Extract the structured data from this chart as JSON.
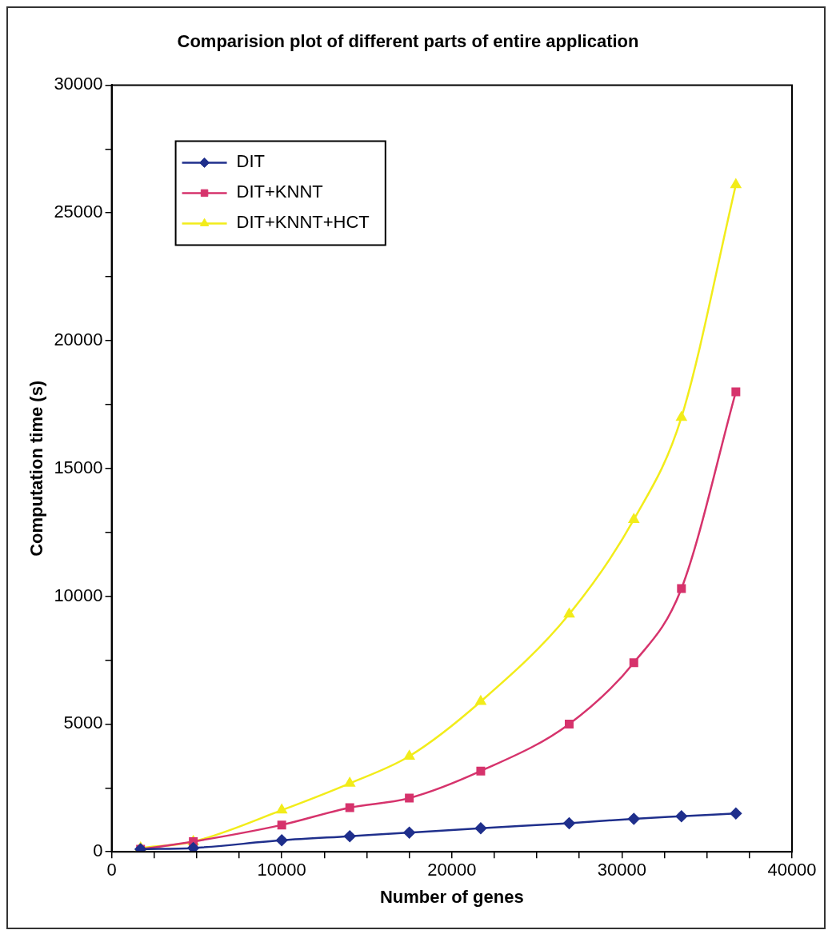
{
  "chart_data": {
    "type": "line",
    "title": "Comparision plot of different parts of entire application",
    "xlabel": "Number of genes",
    "ylabel": "Computation time (s)",
    "x": [
      1700,
      4800,
      10000,
      14000,
      17500,
      21700,
      26900,
      30700,
      33500,
      36700
    ],
    "series": [
      {
        "name": "DIT",
        "color": "#1f2f8c",
        "marker": "diamond",
        "values": [
          100,
          150,
          450,
          610,
          750,
          920,
          1120,
          1290,
          1390,
          1500
        ]
      },
      {
        "name": "DIT+KNNT",
        "color": "#d6336c",
        "marker": "square",
        "values": [
          100,
          400,
          1050,
          1730,
          2100,
          3160,
          5000,
          7400,
          10300,
          18000
        ]
      },
      {
        "name": "DIT+KNNT+HCT",
        "color": "#f2ec1a",
        "marker": "triangle",
        "values": [
          150,
          400,
          1630,
          2680,
          3740,
          5880,
          9300,
          13000,
          17000,
          26100
        ]
      }
    ],
    "xlim": [
      0,
      40000
    ],
    "xticks": [
      0,
      {
        "value": 2500,
        "label": null
      },
      {
        "value": 5000,
        "label": null
      },
      {
        "value": 7500,
        "label": null
      },
      10000,
      {
        "value": 12500,
        "label": null
      },
      {
        "value": 15000,
        "label": null
      },
      {
        "value": 17500,
        "label": null
      },
      20000,
      {
        "value": 22500,
        "label": null
      },
      {
        "value": 25000,
        "label": null
      },
      {
        "value": 27500,
        "label": null
      },
      30000,
      {
        "value": 32500,
        "label": null
      },
      {
        "value": 35000,
        "label": null
      },
      {
        "value": 37500,
        "label": null
      },
      40000
    ],
    "ylim": [
      0,
      30000
    ],
    "yticks": [
      0,
      {
        "value": 2500,
        "label": null
      },
      5000,
      {
        "value": 7500,
        "label": null
      },
      10000,
      {
        "value": 12500,
        "label": null
      },
      15000,
      {
        "value": 17500,
        "label": null
      },
      20000,
      {
        "value": 22500,
        "label": null
      },
      25000,
      {
        "value": 27500,
        "label": null
      },
      30000
    ],
    "grid": false,
    "legend": "top left",
    "line_style": "solid"
  }
}
